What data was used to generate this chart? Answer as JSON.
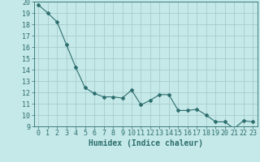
{
  "x": [
    0,
    1,
    2,
    3,
    4,
    5,
    6,
    7,
    8,
    9,
    10,
    11,
    12,
    13,
    14,
    15,
    16,
    17,
    18,
    19,
    20,
    21,
    22,
    23
  ],
  "y": [
    19.7,
    19.0,
    18.2,
    16.2,
    14.2,
    12.4,
    11.9,
    11.6,
    11.6,
    11.5,
    12.2,
    10.9,
    11.3,
    11.8,
    11.8,
    10.4,
    10.4,
    10.5,
    10.0,
    9.4,
    9.4,
    8.8,
    9.5,
    9.4
  ],
  "line_color": "#2d6e6e",
  "marker": "D",
  "marker_size": 2.0,
  "bg_color": "#c5e8e8",
  "grid_color": "#a8cccc",
  "xlabel": "Humidex (Indice chaleur)",
  "xlim": [
    -0.5,
    23.5
  ],
  "ylim": [
    9,
    20
  ],
  "yticks": [
    9,
    10,
    11,
    12,
    13,
    14,
    15,
    16,
    17,
    18,
    19,
    20
  ],
  "xticks": [
    0,
    1,
    2,
    3,
    4,
    5,
    6,
    7,
    8,
    9,
    10,
    11,
    12,
    13,
    14,
    15,
    16,
    17,
    18,
    19,
    20,
    21,
    22,
    23
  ],
  "tick_color": "#2d6e6e",
  "label_color": "#2d6e6e",
  "font_size": 6.0,
  "xlabel_fontsize": 7.0,
  "linewidth": 0.8
}
